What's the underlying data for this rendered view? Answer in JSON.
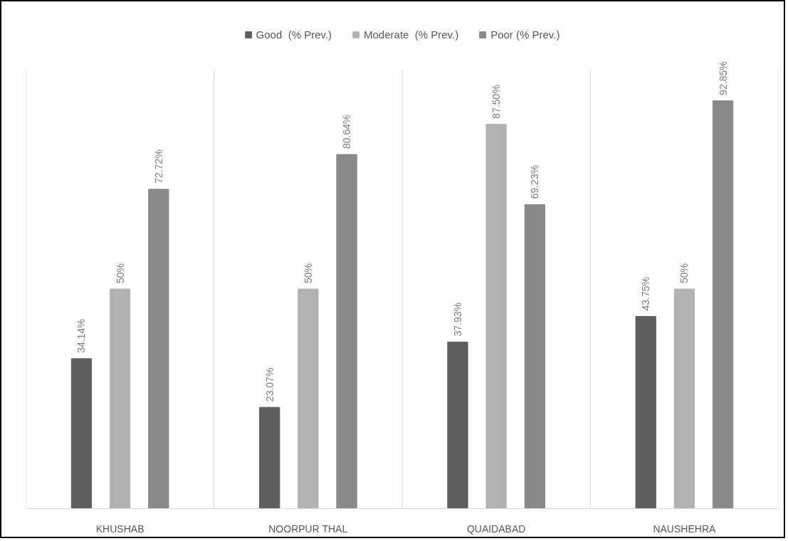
{
  "chart_data": {
    "type": "bar",
    "categories": [
      "KHUSHAB",
      "NOORPUR THAL",
      "QUAIDABAD",
      "NAUSHEHRA"
    ],
    "series": [
      {
        "name": "Good  (% Prev.)",
        "color": "#5f5f5f",
        "values": [
          34.14,
          23.07,
          37.93,
          43.75
        ],
        "value_labels": [
          "34.14%",
          "23.07%",
          "37.93%",
          "43.75%"
        ]
      },
      {
        "name": "Moderate  (% Prev.)",
        "color": "#b2b2b2",
        "values": [
          50,
          50,
          87.5,
          50
        ],
        "value_labels": [
          "50%",
          "50%",
          "87.50%",
          "50%"
        ]
      },
      {
        "name": "Poor (% Prev.)",
        "color": "#898989",
        "values": [
          72.72,
          80.64,
          69.23,
          92.85
        ],
        "value_labels": [
          "72.72%",
          "80.64%",
          "69.23%",
          "92.85%"
        ]
      }
    ],
    "ylim": [
      0,
      100
    ],
    "tick_labels": "x",
    "grid": "x",
    "legend": "top"
  }
}
